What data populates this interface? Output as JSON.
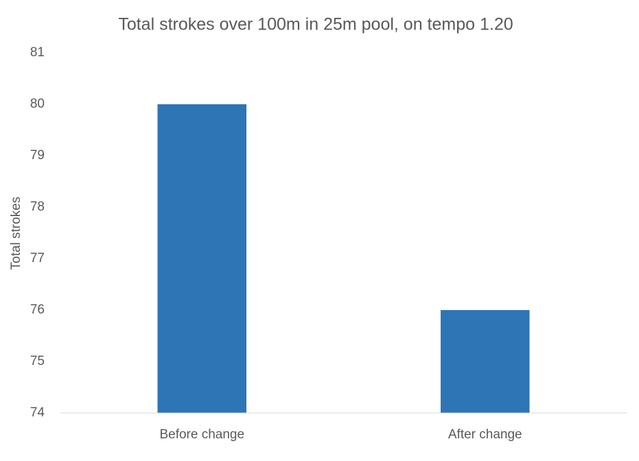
{
  "chart_data": {
    "type": "bar",
    "title": "Total strokes over 100m in 25m pool, on tempo 1.20",
    "y_label": "Total strokes",
    "categories": [
      "Before change",
      "After change"
    ],
    "values": [
      80,
      76
    ],
    "color": "#2e75b6",
    "ylim": [
      74,
      81
    ],
    "yticks": [
      74,
      75,
      76,
      77,
      78,
      79,
      80,
      81
    ],
    "grid": false
  }
}
